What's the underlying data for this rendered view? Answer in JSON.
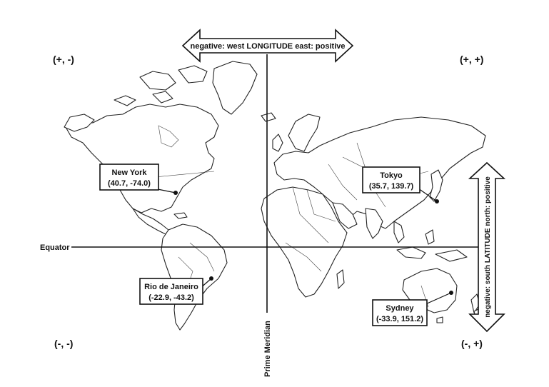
{
  "arrows": {
    "longitude": "negative: west LONGITUDE east: positive",
    "latitude": "negative: south LATITUDE north: positive"
  },
  "lines": {
    "equator": "Equator",
    "prime_meridian": "Prime Meridian"
  },
  "quadrants": {
    "top_left": "(+, -)",
    "top_right": "(+, +)",
    "bottom_left": "(-, -)",
    "bottom_right": "(-, +)"
  },
  "cities": [
    {
      "name": "New York",
      "coords": "(40.7, -74.0)"
    },
    {
      "name": "Tokyo",
      "coords": "(35.7, 139.7)"
    },
    {
      "name": "Rio de Janeiro",
      "coords": "(-22.9, -43.2)"
    },
    {
      "name": "Sydney",
      "coords": "(-33.9, 151.2)"
    }
  ]
}
